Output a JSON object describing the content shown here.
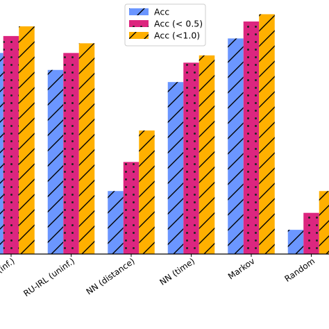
{
  "chart_data": {
    "type": "bar",
    "categories": [
      "RU-IRL (inf.)",
      "RU-IRL (uninf.)",
      "NN (distance)",
      "NN (time)",
      "Markov",
      "Random"
    ],
    "series": [
      {
        "name": "Acc",
        "values": [
          0.83,
          0.76,
          0.26,
          0.71,
          0.89,
          0.1
        ],
        "color": "#6b96ff",
        "hatch": "diagonal"
      },
      {
        "name": "Acc (< 0.5)",
        "values": [
          0.9,
          0.83,
          0.38,
          0.79,
          0.96,
          0.17
        ],
        "color": "#dc267f",
        "hatch": "dots"
      },
      {
        "name": "Acc (<1.0)",
        "values": [
          0.94,
          0.87,
          0.51,
          0.82,
          0.99,
          0.26
        ],
        "color": "#ffb000",
        "hatch": "diagonal"
      }
    ],
    "ylim": [
      0,
      1.0
    ],
    "xlabel": "",
    "ylabel": "",
    "legend_position": "top-center",
    "grid": false
  }
}
